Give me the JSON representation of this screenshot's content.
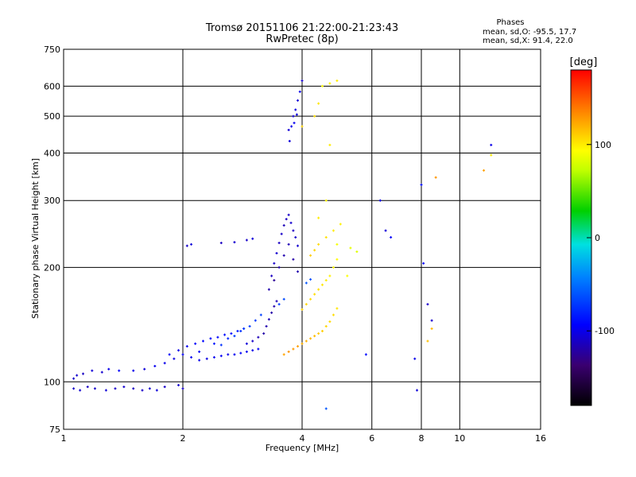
{
  "chart_data": {
    "type": "scatter",
    "title": "Tromsø 20151106 21:22:00-21:23:43",
    "subtitle": "RwPretec (8p)",
    "xlabel": "Frequency [MHz]",
    "ylabel": "Stationary phase Virtual Height [km]",
    "x_scale": "log",
    "y_scale": "log",
    "xlim": [
      1,
      16
    ],
    "ylim": [
      75,
      750
    ],
    "x_ticks": [
      1,
      2,
      4,
      6,
      8,
      10,
      16
    ],
    "y_ticks": [
      75,
      100,
      200,
      300,
      400,
      500,
      600,
      750
    ],
    "x_gridlines": [
      1,
      2,
      4,
      6,
      8,
      10,
      16
    ],
    "y_gridlines": [
      75,
      100,
      200,
      300,
      400,
      500,
      600,
      750
    ],
    "grid": true,
    "stats": {
      "heading": "Phases",
      "lines": [
        "mean, sd,O: -95.5, 17.7",
        "mean, sd,X:  91.4, 22.0"
      ]
    },
    "colorbar": {
      "label": "[deg]",
      "min": -180,
      "max": 180,
      "ticks": [
        100,
        0,
        -100
      ],
      "placement": "right"
    },
    "series": [
      {
        "points": [
          [
            1.06,
            102,
            -110
          ],
          [
            1.08,
            104,
            -108
          ],
          [
            1.12,
            105,
            -112
          ],
          [
            1.18,
            107,
            -105
          ],
          [
            1.25,
            106,
            -108
          ],
          [
            1.3,
            108,
            -100
          ],
          [
            1.38,
            107,
            -95
          ],
          [
            1.06,
            96,
            -110
          ],
          [
            1.1,
            95,
            -108
          ],
          [
            1.15,
            97,
            -112
          ],
          [
            1.2,
            96,
            -110
          ],
          [
            1.28,
            95,
            -106
          ],
          [
            1.35,
            96,
            -110
          ],
          [
            1.42,
            97,
            -108
          ],
          [
            1.5,
            96,
            -112
          ],
          [
            1.58,
            95,
            -110
          ],
          [
            1.65,
            96,
            -108
          ],
          [
            1.72,
            95,
            -105
          ],
          [
            1.8,
            97,
            -110
          ],
          [
            1.95,
            98,
            -108
          ],
          [
            2.0,
            96,
            -110
          ],
          [
            1.5,
            107,
            -100
          ],
          [
            1.6,
            108,
            -105
          ],
          [
            1.7,
            110,
            -98
          ],
          [
            1.8,
            112,
            -100
          ],
          [
            1.9,
            115,
            -102
          ],
          [
            2.0,
            118,
            -95
          ],
          [
            2.1,
            116,
            -98
          ],
          [
            2.2,
            114,
            -100
          ],
          [
            2.3,
            115,
            -102
          ],
          [
            2.4,
            116,
            -98
          ],
          [
            2.5,
            117,
            -96
          ],
          [
            2.6,
            118,
            -100
          ],
          [
            2.7,
            118,
            -98
          ],
          [
            2.8,
            119,
            -95
          ],
          [
            2.9,
            120,
            -98
          ],
          [
            3.0,
            121,
            -100
          ],
          [
            3.1,
            122,
            -96
          ],
          [
            1.85,
            118,
            -95
          ],
          [
            1.95,
            121,
            -100
          ],
          [
            2.05,
            124,
            -98
          ],
          [
            2.15,
            126,
            -95
          ],
          [
            2.25,
            128,
            -92
          ],
          [
            2.35,
            130,
            -90
          ],
          [
            2.45,
            131,
            -92
          ],
          [
            2.55,
            133,
            -88
          ],
          [
            2.65,
            134,
            -90
          ],
          [
            2.75,
            136,
            -85
          ],
          [
            2.85,
            138,
            -80
          ],
          [
            2.9,
            126,
            -105
          ],
          [
            3.0,
            128,
            -110
          ],
          [
            3.1,
            131,
            -115
          ],
          [
            3.2,
            134,
            -120
          ],
          [
            3.25,
            140,
            -118
          ],
          [
            3.3,
            146,
            -115
          ],
          [
            3.35,
            152,
            -120
          ],
          [
            3.4,
            158,
            -118
          ],
          [
            3.45,
            163,
            -115
          ],
          [
            3.3,
            175,
            -118
          ],
          [
            3.35,
            190,
            -112
          ],
          [
            3.4,
            205,
            -110
          ],
          [
            3.45,
            218,
            -108
          ],
          [
            3.5,
            232,
            -112
          ],
          [
            3.55,
            245,
            -110
          ],
          [
            3.6,
            258,
            -115
          ],
          [
            3.65,
            268,
            -112
          ],
          [
            3.7,
            275,
            -110
          ],
          [
            3.75,
            262,
            -108
          ],
          [
            3.8,
            250,
            -112
          ],
          [
            3.85,
            240,
            -110
          ],
          [
            3.9,
            228,
            -108
          ],
          [
            3.4,
            185,
            -125
          ],
          [
            3.5,
            200,
            -120
          ],
          [
            3.6,
            215,
            -118
          ],
          [
            3.7,
            230,
            -116
          ],
          [
            3.8,
            210,
            -120
          ],
          [
            3.9,
            195,
            -118
          ],
          [
            3.72,
            430,
            -105
          ],
          [
            3.76,
            470,
            -100
          ],
          [
            3.8,
            500,
            -108
          ],
          [
            3.85,
            520,
            -102
          ],
          [
            3.9,
            550,
            -106
          ],
          [
            3.95,
            580,
            -100
          ],
          [
            4.0,
            620,
            -110
          ],
          [
            3.7,
            460,
            -106
          ],
          [
            3.82,
            480,
            -98
          ],
          [
            3.88,
            505,
            -104
          ],
          [
            2.05,
            228,
            -110
          ],
          [
            2.1,
            230,
            -105
          ],
          [
            2.5,
            232,
            -112
          ],
          [
            2.7,
            233,
            -108
          ],
          [
            2.9,
            236,
            -110
          ],
          [
            3.0,
            238,
            -105
          ]
        ]
      },
      {
        "points": [
          [
            3.6,
            118,
            125
          ],
          [
            3.7,
            120,
            130
          ],
          [
            3.8,
            122,
            128
          ],
          [
            3.9,
            124,
            126
          ],
          [
            4.0,
            126,
            122
          ],
          [
            4.1,
            128,
            120
          ],
          [
            4.2,
            130,
            118
          ],
          [
            4.3,
            132,
            116
          ],
          [
            4.4,
            134,
            112
          ],
          [
            4.5,
            136,
            110
          ],
          [
            4.6,
            140,
            108
          ],
          [
            4.7,
            144,
            106
          ],
          [
            4.8,
            150,
            105
          ],
          [
            4.9,
            156,
            102
          ],
          [
            4.0,
            155,
            110
          ],
          [
            4.1,
            160,
            108
          ],
          [
            4.2,
            165,
            106
          ],
          [
            4.3,
            170,
            105
          ],
          [
            4.4,
            175,
            104
          ],
          [
            4.5,
            180,
            102
          ],
          [
            4.6,
            185,
            100
          ],
          [
            4.7,
            190,
            98
          ],
          [
            4.8,
            200,
            96
          ],
          [
            4.9,
            210,
            95
          ],
          [
            4.2,
            215,
            110
          ],
          [
            4.3,
            222,
            108
          ],
          [
            4.4,
            230,
            106
          ],
          [
            4.6,
            240,
            104
          ],
          [
            4.8,
            250,
            100
          ],
          [
            5.0,
            260,
            98
          ],
          [
            4.5,
            600,
            95
          ],
          [
            4.7,
            610,
            98
          ],
          [
            4.9,
            620,
            100
          ],
          [
            4.3,
            500,
            105
          ],
          [
            4.0,
            470,
            110
          ],
          [
            4.7,
            420,
            100
          ],
          [
            4.4,
            540,
            102
          ],
          [
            4.9,
            230,
            90
          ],
          [
            5.3,
            225,
            85
          ],
          [
            5.5,
            220,
            82
          ],
          [
            4.6,
            300,
            96
          ],
          [
            4.4,
            270,
            100
          ],
          [
            5.2,
            190,
            92
          ]
        ]
      },
      {
        "points": [
          [
            2.2,
            120,
            -95
          ],
          [
            2.4,
            126,
            -85
          ],
          [
            2.6,
            130,
            -80
          ],
          [
            2.8,
            136,
            -75
          ],
          [
            2.95,
            140,
            -70
          ],
          [
            3.05,
            145,
            -72
          ],
          [
            3.15,
            150,
            -68
          ],
          [
            3.5,
            160,
            -70
          ],
          [
            3.6,
            165,
            -65
          ],
          [
            4.1,
            182,
            -60
          ],
          [
            4.2,
            186,
            -62
          ],
          [
            2.5,
            125,
            -75
          ],
          [
            2.7,
            132,
            -72
          ],
          [
            2.85,
            138,
            -70
          ]
        ]
      },
      {
        "points": [
          [
            6.3,
            300,
            -100
          ],
          [
            6.7,
            240,
            -95
          ],
          [
            6.5,
            250,
            -105
          ],
          [
            7.7,
            115,
            -100
          ],
          [
            7.8,
            95,
            -105
          ],
          [
            8.1,
            205,
            -95
          ],
          [
            8.3,
            160,
            -110
          ],
          [
            8.5,
            145,
            -108
          ],
          [
            12.0,
            420,
            -100
          ],
          [
            8.0,
            330,
            -90
          ],
          [
            4.6,
            85,
            -60
          ],
          [
            5.8,
            118,
            -90
          ]
        ]
      },
      {
        "points": [
          [
            8.7,
            345,
            130
          ],
          [
            11.5,
            360,
            125
          ],
          [
            12.0,
            395,
            100
          ],
          [
            8.3,
            128,
            115
          ],
          [
            8.5,
            138,
            118
          ]
        ]
      }
    ]
  }
}
